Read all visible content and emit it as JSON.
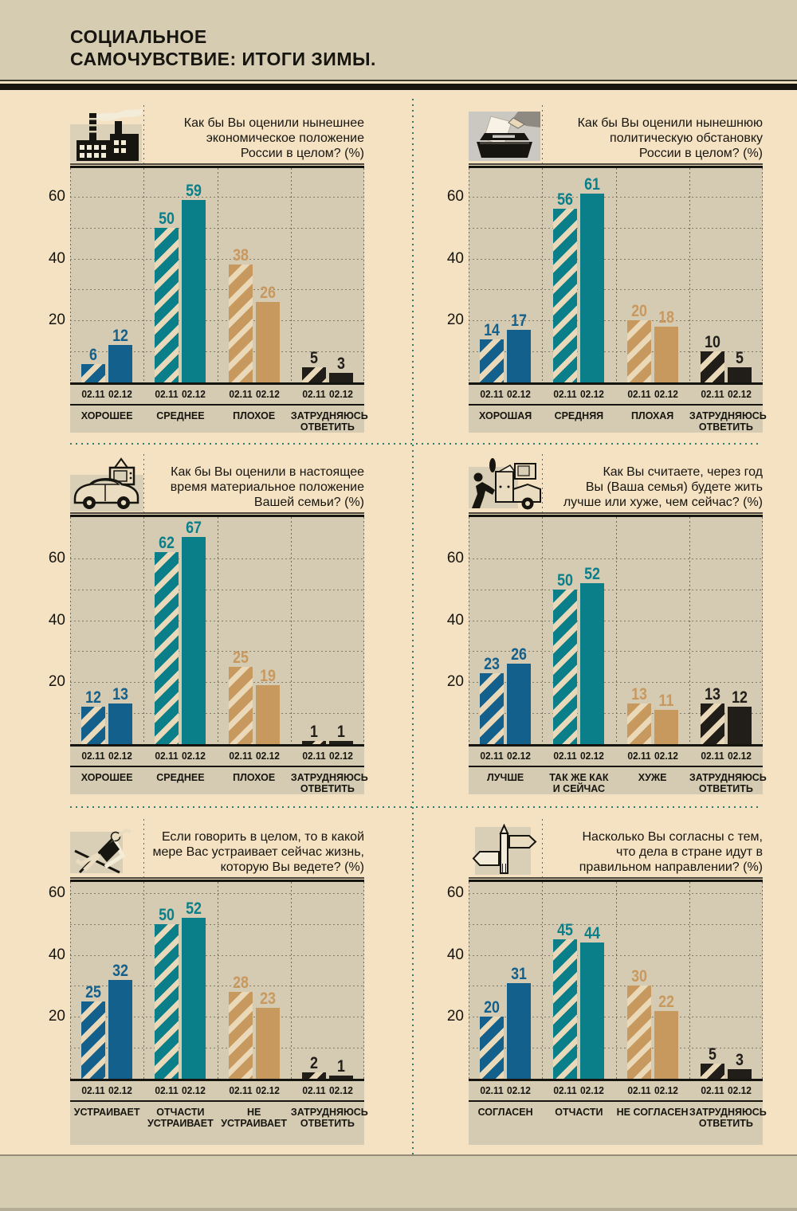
{
  "header": {
    "title": "СОЦИАЛЬНОЕ\nСАМОЧУВСТВИЕ: ИТОГИ ЗИМЫ."
  },
  "colors": {
    "page_background": "#f4e2c3",
    "plot_background": "#d5cbb2",
    "band_background": "#d6ccb2",
    "divider_dots": "#2e7c6b",
    "categories": [
      "#14608c",
      "#0a7f8a",
      "#c8995f",
      "#211d19"
    ],
    "hatch_gap": "#ead9b8"
  },
  "series_labels": [
    "02.11",
    "02.12"
  ],
  "chart_data": [
    {
      "type": "bar",
      "icon": "factory-icon",
      "question": "Как бы Вы оценили нынешнее\nэкономическое положение\nРоссии в целом? (%)",
      "categories": [
        "ХОРОШЕЕ",
        "СРЕДНЕЕ",
        "ПЛОХОЕ",
        "ЗАТРУДНЯЮСЬ\nОТВЕТИТЬ"
      ],
      "series": [
        {
          "name": "02.11",
          "values": [
            6,
            50,
            38,
            5
          ]
        },
        {
          "name": "02.12",
          "values": [
            12,
            59,
            26,
            3
          ]
        }
      ],
      "ylim": [
        0,
        70
      ],
      "yticks": [
        20,
        40,
        60
      ]
    },
    {
      "type": "bar",
      "icon": "ballot-box-icon",
      "question": "Как бы Вы оценили нынешнюю\nполитическую обстановку\nРоссии в целом? (%)",
      "categories": [
        "ХОРОШАЯ",
        "СРЕДНЯЯ",
        "ПЛОХАЯ",
        "ЗАТРУДНЯЮСЬ\nОТВЕТИТЬ"
      ],
      "series": [
        {
          "name": "02.11",
          "values": [
            14,
            56,
            20,
            10
          ]
        },
        {
          "name": "02.12",
          "values": [
            17,
            61,
            18,
            5
          ]
        }
      ],
      "ylim": [
        0,
        70
      ],
      "yticks": [
        20,
        40,
        60
      ]
    },
    {
      "type": "bar",
      "icon": "car-tv-icon",
      "question": "Как бы Вы оценили в настоящее\nвремя материальное положение\nВашей семьи? (%)",
      "categories": [
        "ХОРОШЕЕ",
        "СРЕДНЕЕ",
        "ПЛОХОЕ",
        "ЗАТРУДНЯЮСЬ\nОТВЕТИТЬ"
      ],
      "series": [
        {
          "name": "02.11",
          "values": [
            12,
            62,
            25,
            1
          ]
        },
        {
          "name": "02.12",
          "values": [
            13,
            67,
            19,
            1
          ]
        }
      ],
      "ylim": [
        0,
        74
      ],
      "yticks": [
        20,
        40,
        60
      ]
    },
    {
      "type": "bar",
      "icon": "moving-cart-icon",
      "question": "Как Вы считаете, через год\nВы (Ваша семья) будете жить\nлучше или хуже, чем сейчас? (%)",
      "categories": [
        "ЛУЧШЕ",
        "ТАК ЖЕ КАК\nИ СЕЙЧАС",
        "ХУЖЕ",
        "ЗАТРУДНЯЮСЬ\nОТВЕТИТЬ"
      ],
      "series": [
        {
          "name": "02.11",
          "values": [
            23,
            50,
            13,
            13
          ]
        },
        {
          "name": "02.12",
          "values": [
            26,
            52,
            11,
            12
          ]
        }
      ],
      "ylim": [
        0,
        74
      ],
      "yticks": [
        20,
        40,
        60
      ]
    },
    {
      "type": "bar",
      "icon": "deck-chair-icon",
      "question": "Если говорить в целом, то в какой\nмере Вас устраивает сейчас жизнь,\nкоторую Вы ведете? (%)",
      "categories": [
        "УСТРАИВАЕТ",
        "ОТЧАСТИ\nУСТРАИВАЕТ",
        "НЕ УСТРАИВАЕТ",
        "ЗАТРУДНЯЮСЬ\nОТВЕТИТЬ"
      ],
      "series": [
        {
          "name": "02.11",
          "values": [
            25,
            50,
            28,
            2
          ]
        },
        {
          "name": "02.12",
          "values": [
            32,
            52,
            23,
            1
          ]
        }
      ],
      "ylim": [
        0,
        64
      ],
      "yticks": [
        20,
        40,
        60
      ]
    },
    {
      "type": "bar",
      "icon": "signpost-icon",
      "question": "Насколько Вы согласны с тем,\nчто дела в стране идут в\nправильном направлении? (%)",
      "categories": [
        "СОГЛАСЕН",
        "ОТЧАСТИ",
        "НЕ СОГЛАСЕН",
        "ЗАТРУДНЯЮСЬ\nОТВЕТИТЬ"
      ],
      "series": [
        {
          "name": "02.11",
          "values": [
            20,
            45,
            30,
            5
          ]
        },
        {
          "name": "02.12",
          "values": [
            31,
            44,
            22,
            3
          ]
        }
      ],
      "ylim": [
        0,
        64
      ],
      "yticks": [
        20,
        40,
        60
      ]
    }
  ]
}
